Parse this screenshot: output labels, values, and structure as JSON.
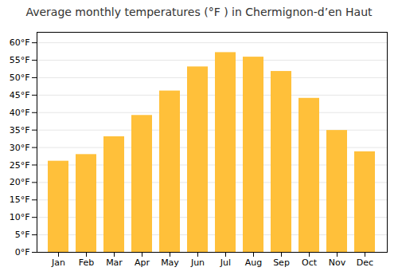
{
  "chart_data": {
    "type": "bar",
    "title": "Average monthly temperatures (°F ) in Chermignon-d’en Haut",
    "categories": [
      "Jan",
      "Feb",
      "Mar",
      "Apr",
      "May",
      "Jun",
      "Jul",
      "Aug",
      "Sep",
      "Oct",
      "Nov",
      "Dec"
    ],
    "values": [
      26.1,
      28.0,
      33.1,
      39.2,
      46.2,
      53.1,
      57.2,
      55.9,
      51.8,
      44.1,
      34.9,
      28.8
    ],
    "color": "#FFC03A",
    "ylim": [
      0,
      63
    ],
    "yticks": [
      {
        "value": 0,
        "label": "0°F"
      },
      {
        "value": 5,
        "label": "5°F"
      },
      {
        "value": 10,
        "label": "10°F"
      },
      {
        "value": 15,
        "label": "15°F"
      },
      {
        "value": 20,
        "label": "20°F"
      },
      {
        "value": 25,
        "label": "25°F"
      },
      {
        "value": 30,
        "label": "30°F"
      },
      {
        "value": 35,
        "label": "35°F"
      },
      {
        "value": 40,
        "label": "40°F"
      },
      {
        "value": 45,
        "label": "45°F"
      },
      {
        "value": 50,
        "label": "50°F"
      },
      {
        "value": 55,
        "label": "55°F"
      },
      {
        "value": 60,
        "label": "60°F"
      }
    ],
    "grid": true
  }
}
